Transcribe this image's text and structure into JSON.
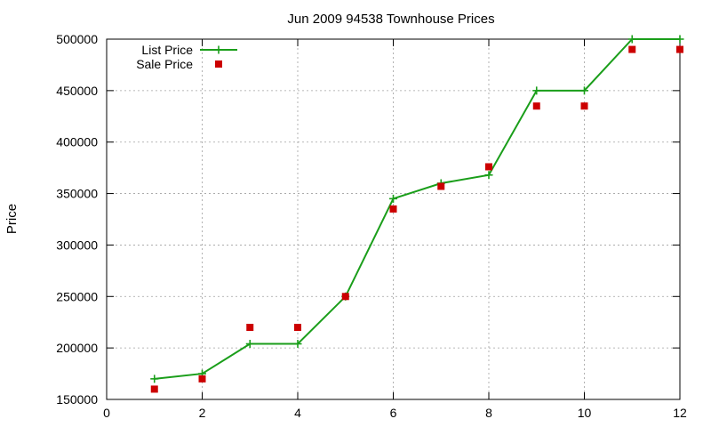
{
  "chart_data": {
    "type": "line",
    "title": "Jun 2009 94538 Townhouse Prices",
    "xlabel": "",
    "ylabel": "Price",
    "xlim": [
      0,
      12
    ],
    "ylim": [
      150000,
      500000
    ],
    "xticks": [
      0,
      2,
      4,
      6,
      8,
      10,
      12
    ],
    "yticks": [
      150000,
      200000,
      250000,
      300000,
      350000,
      400000,
      450000,
      500000
    ],
    "grid": true,
    "legend_position": "top-left",
    "series": [
      {
        "name": "List Price",
        "kind": "line-points",
        "color": "#1a9e1a",
        "marker": "plus",
        "x": [
          1,
          2,
          3,
          4,
          5,
          6,
          7,
          8,
          9,
          10,
          11,
          12
        ],
        "y": [
          170000,
          175000,
          204000,
          204000,
          250000,
          345000,
          360000,
          368000,
          450000,
          450000,
          500000,
          500000
        ]
      },
      {
        "name": "Sale Price",
        "kind": "points",
        "color": "#cc0000",
        "marker": "square",
        "x": [
          1,
          2,
          3,
          4,
          5,
          6,
          7,
          8,
          9,
          10,
          11,
          12
        ],
        "y": [
          160000,
          170000,
          220000,
          220000,
          250000,
          335000,
          357000,
          376000,
          435000,
          435000,
          490000,
          490000
        ]
      }
    ]
  }
}
